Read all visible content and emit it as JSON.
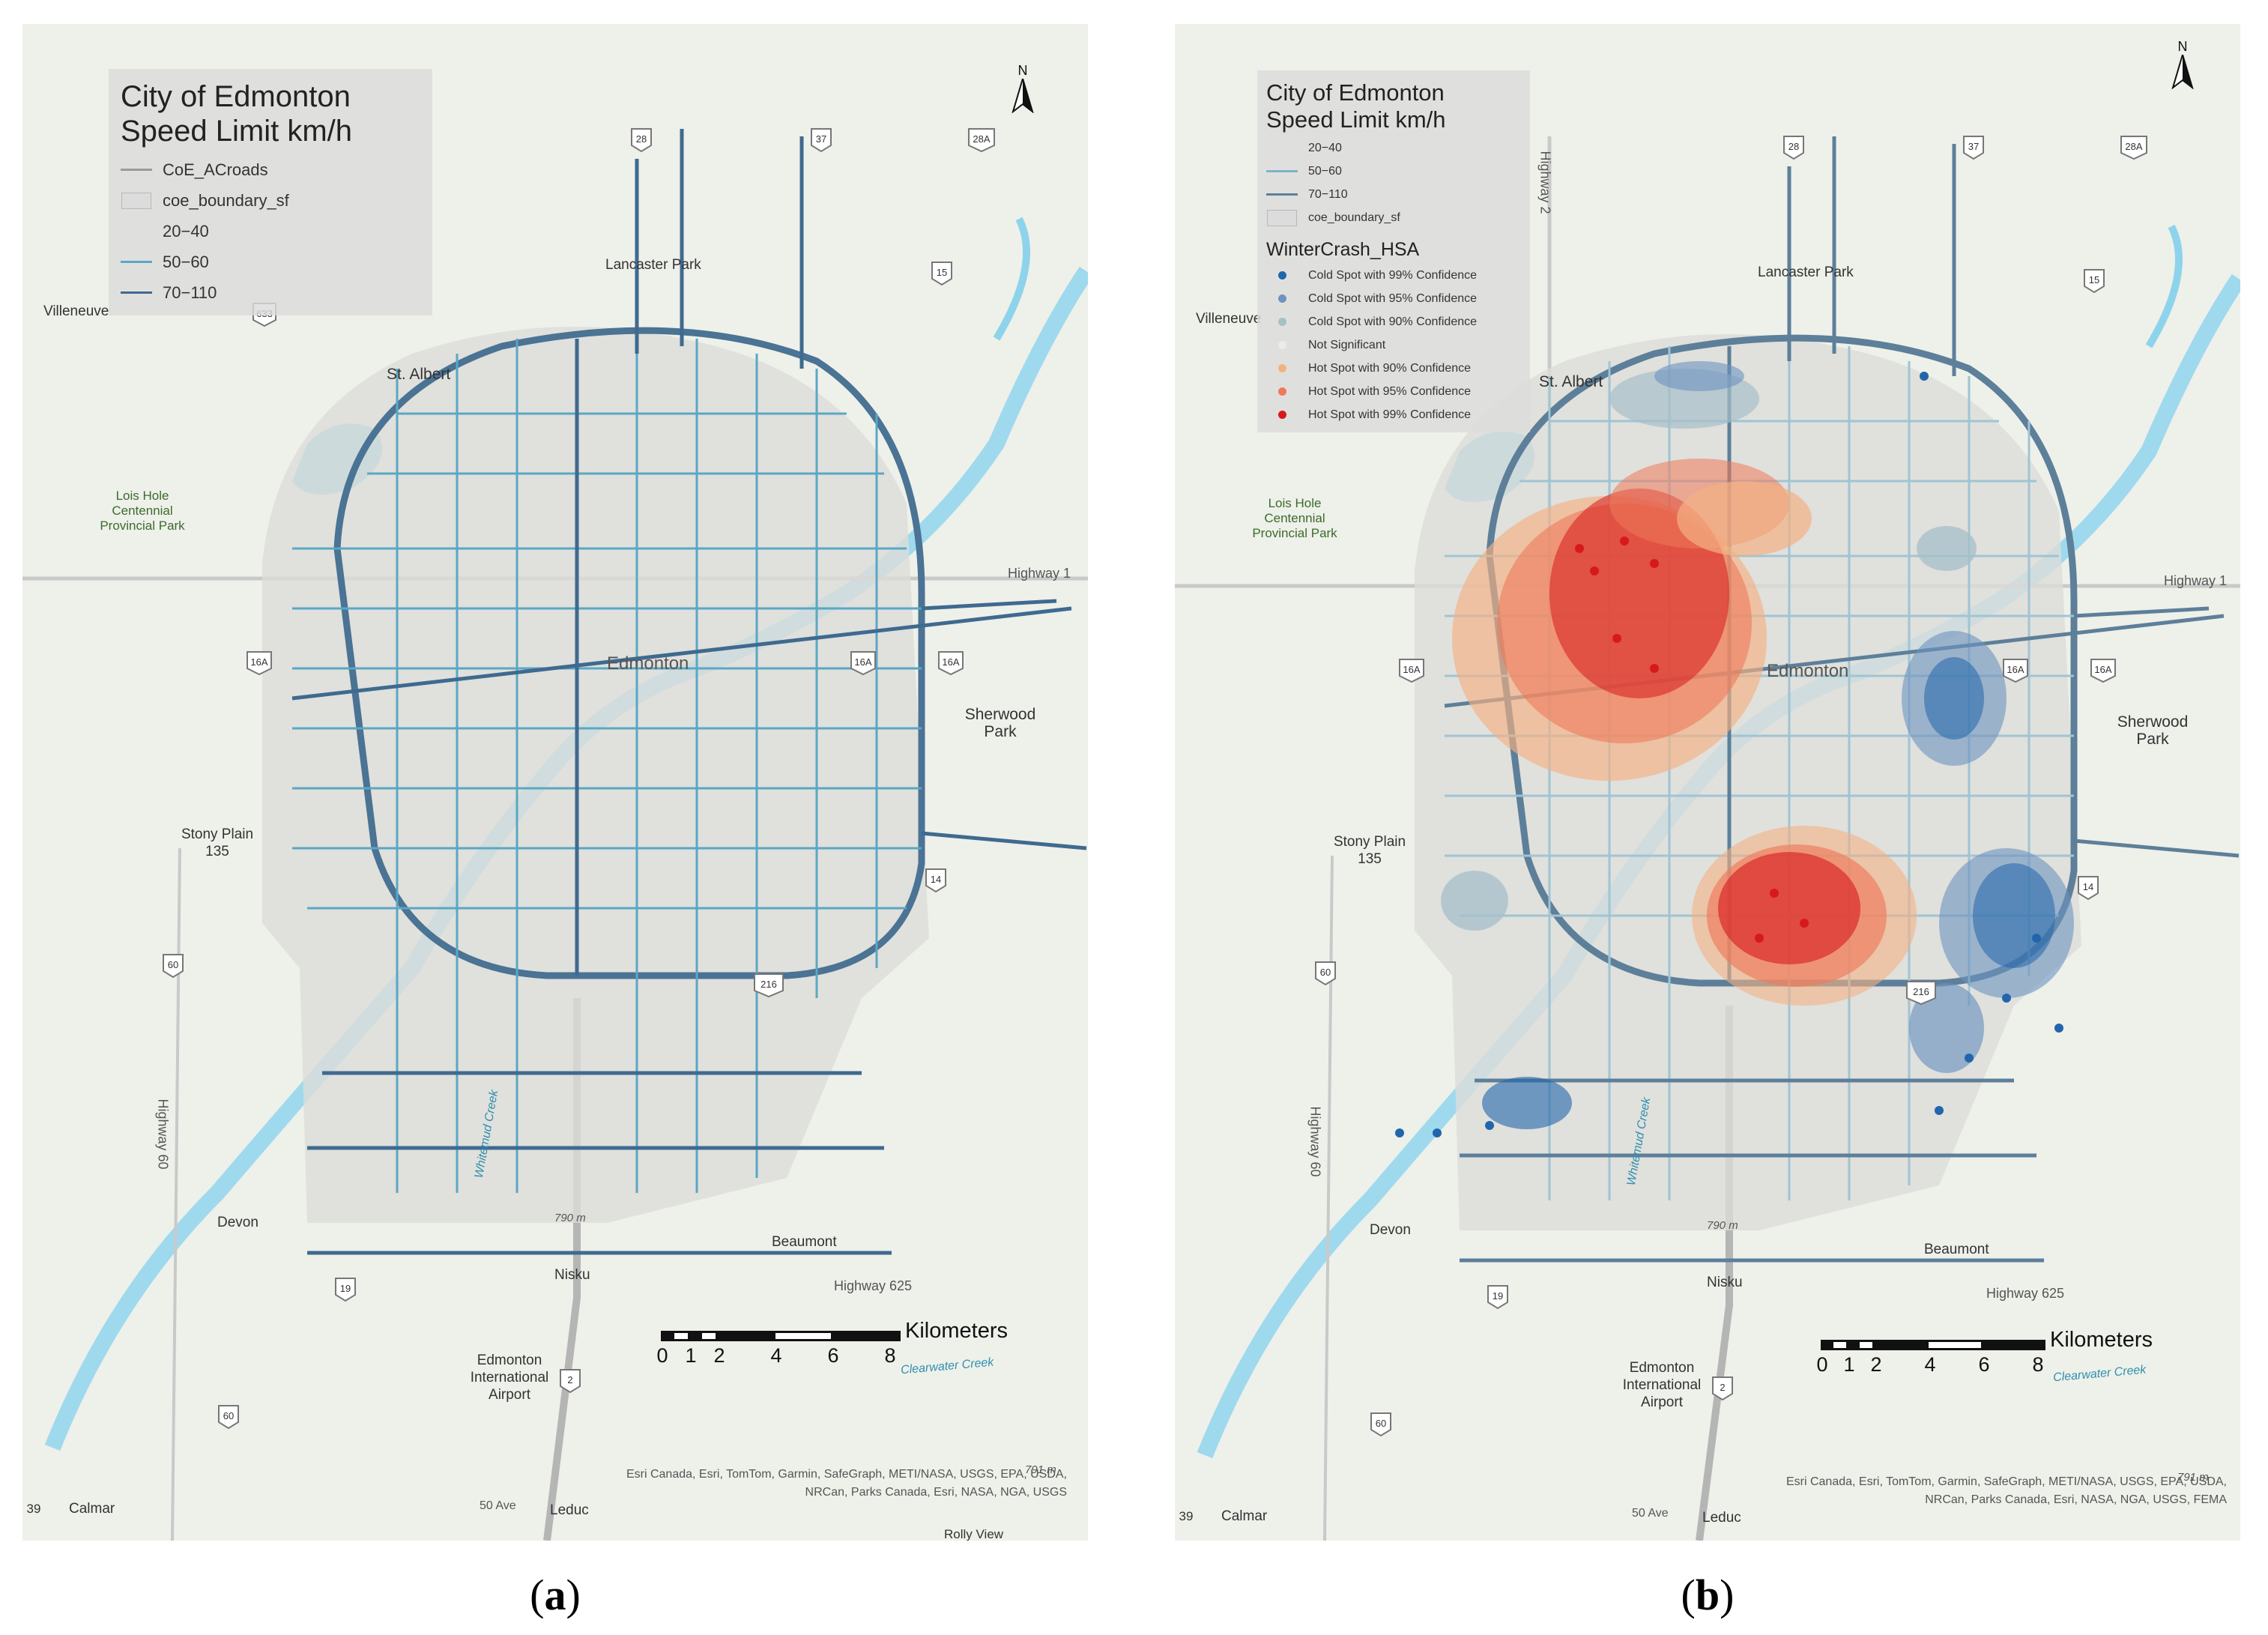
{
  "panel_a": {
    "label": "a",
    "legend": {
      "title_line1": "City of Edmonton",
      "title_line2": "Speed Limit km/h",
      "items": [
        {
          "label": "CoE_ACroads",
          "symbol": "line",
          "color": "#9a9a9a"
        },
        {
          "label": "coe_boundary_sf",
          "symbol": "box",
          "color": "#d8d8d8"
        },
        {
          "label": "20−40",
          "symbol": "none",
          "color": "#e0e0e0"
        },
        {
          "label": "50−60",
          "symbol": "line",
          "color": "#5aa7c4"
        },
        {
          "label": "70−110",
          "symbol": "line",
          "color": "#3f6a8f"
        }
      ]
    },
    "north": "N",
    "scale": {
      "unit": "Kilometers",
      "ticks": [
        "0",
        "1",
        "2",
        "4",
        "6",
        "8"
      ]
    },
    "attribution": [
      "Esri Canada, Esri, TomTom, Garmin, SafeGraph, METI/NASA, USGS, EPA, USDA,",
      "NRCan, Parks Canada, Esri, NASA, NGA, USGS"
    ],
    "places": {
      "villeneuve": "Villeneuve",
      "st_albert": "St. Albert",
      "lancaster_park": "Lancaster Park",
      "lois_hole_1": "Lois Hole",
      "lois_hole_2": "Centennial",
      "lois_hole_3": "Provincial Park",
      "sherwood_1": "Sherwood",
      "sherwood_2": "Park",
      "stony_1": "Stony Plain",
      "stony_2": "135",
      "highway_1": "Highway 1",
      "devon": "Devon",
      "beaumont": "Beaumont",
      "highway_625": "Highway 625",
      "nisku": "Nisku",
      "airport_1": "Edmonton",
      "airport_2": "International",
      "airport_3": "Airport",
      "calmar": "Calmar",
      "leduc": "Leduc",
      "fifty_ave": "50 Ave",
      "highway_60": "Highway 60",
      "clearwater": "Clearwater Creek",
      "edmonton": "Edmonton",
      "elev_790": "790 m",
      "elev_791": "791 m",
      "rolly": "Rolly View",
      "whitemud_creek": "Whitemud Creek",
      "shield_28": "28",
      "shield_37": "37",
      "shield_28a": "28A",
      "shield_15": "15",
      "shield_633": "633",
      "shield_16a": "16A",
      "shield_14": "14",
      "shield_216": "216",
      "shield_60": "60",
      "shield_19": "19",
      "shield_2": "2",
      "shield_39": "39"
    }
  },
  "panel_b": {
    "label": "b",
    "legend": {
      "title_line1": "City of Edmonton",
      "title_line2": "Speed Limit km/h",
      "items": [
        {
          "label": "20−40",
          "symbol": "line",
          "color": "#e0e0e0"
        },
        {
          "label": "50−60",
          "symbol": "line",
          "color": "#7eb3c9"
        },
        {
          "label": "70−110",
          "symbol": "line",
          "color": "#5d7f99"
        },
        {
          "label": "coe_boundary_sf",
          "symbol": "box",
          "color": "#d8d8d8"
        }
      ],
      "subtitle": "WinterCrash_HSA",
      "classes": [
        {
          "label": "Cold Spot with 99% Confidence",
          "color": "#2166ac"
        },
        {
          "label": "Cold Spot with 95% Confidence",
          "color": "#6d93bf"
        },
        {
          "label": "Cold Spot with 90% Confidence",
          "color": "#a7bfc9"
        },
        {
          "label": "Not Significant",
          "color": "#ebebeb"
        },
        {
          "label": "Hot Spot with 90% Confidence",
          "color": "#f4b183"
        },
        {
          "label": "Hot Spot with 95% Confidence",
          "color": "#ef7a5a"
        },
        {
          "label": "Hot Spot with 99% Confidence",
          "color": "#d7191c"
        }
      ]
    },
    "north": "N",
    "scale": {
      "unit": "Kilometers",
      "ticks": [
        "0",
        "1",
        "2",
        "4",
        "6",
        "8"
      ]
    },
    "attribution": [
      "Esri Canada, Esri, TomTom, Garmin, SafeGraph, METI/NASA, USGS, EPA, USDA,",
      "NRCan, Parks Canada, Esri, NASA, NGA, USGS, FEMA"
    ],
    "places": {
      "highway_2": "Highway 2",
      "highway_1": "Highway 1",
      "villeneuve": "Villeneuve",
      "st_albert": "St. Albert",
      "lancaster_park": "Lancaster Park",
      "lois_hole_1": "Lois Hole",
      "lois_hole_2": "Centennial",
      "lois_hole_3": "Provincial Park",
      "sherwood_1": "Sherwood",
      "sherwood_2": "Park",
      "stony_1": "Stony Plain",
      "stony_2": "135",
      "devon": "Devon",
      "beaumont": "Beaumont",
      "highway_625": "Highway 625",
      "nisku": "Nisku",
      "airport_1": "Edmonton",
      "airport_2": "International",
      "airport_3": "Airport",
      "calmar": "Calmar",
      "leduc": "Leduc",
      "fifty_ave": "50 Ave",
      "highway_60": "Highway 60",
      "clearwater": "Clearwater Creek",
      "edmonton": "Edmonton",
      "elev_790": "790 m",
      "elev_791": "791 m",
      "whitemud_creek": "Whitemud Creek",
      "shield_28": "28",
      "shield_37": "37",
      "shield_28a": "28A",
      "shield_15": "15",
      "shield_16a": "16A",
      "shield_14": "14",
      "shield_216": "216",
      "shield_60": "60",
      "shield_19": "19",
      "shield_2": "2",
      "shield_39": "39"
    }
  }
}
